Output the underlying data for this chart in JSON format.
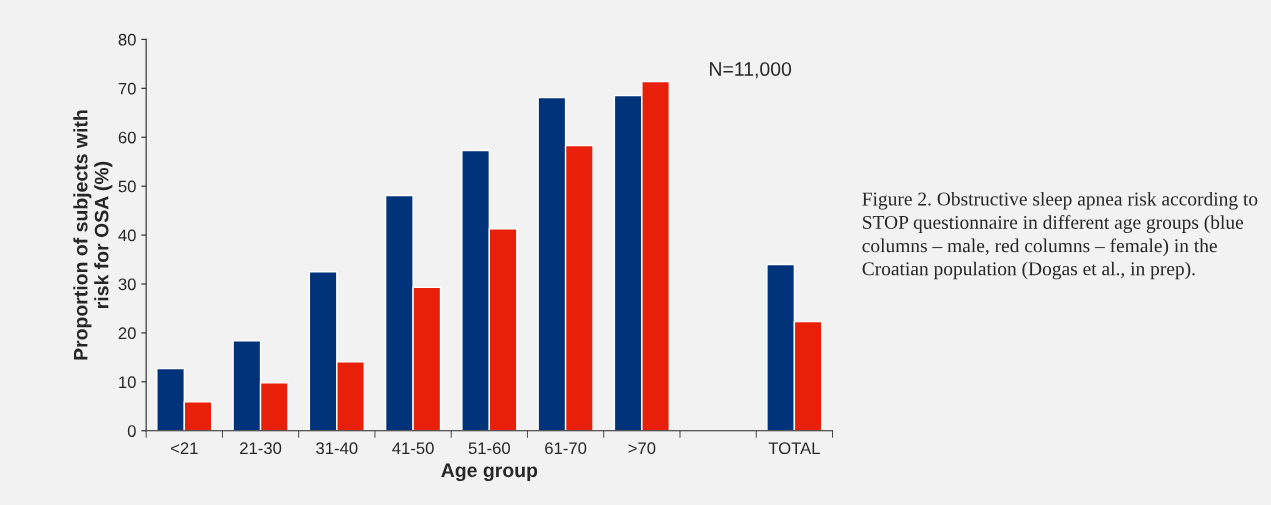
{
  "chart_data": {
    "type": "bar",
    "xlabel": "Age group",
    "ylabel": "Proportion of subjects with\nrisk for OSA (%)",
    "categories": [
      "<21",
      "21-30",
      "31-40",
      "41-50",
      "51-60",
      "61-70",
      ">70",
      null,
      "TOTAL"
    ],
    "series": [
      {
        "color": "#00337a",
        "values": [
          12.7,
          18.4,
          32.5,
          48.1,
          57.3,
          68.1,
          68.5,
          null,
          34.0
        ]
      },
      {
        "color": "#e8200a",
        "values": [
          5.9,
          9.8,
          14.1,
          29.3,
          41.3,
          58.3,
          71.4,
          null,
          22.3
        ]
      }
    ],
    "ylim": [
      0,
      80
    ],
    "yticks": [
      0,
      10,
      20,
      30,
      40,
      50,
      60,
      70,
      80
    ],
    "grid": false,
    "legend": false,
    "annotations": [
      "N=11,000",
      "Figure 2. Obstructive sleep apnea risk according to STOP questionnaire in different age groups (blue columns – male, red columns – female) in the Croatian population (Dogas et al., in prep)."
    ]
  }
}
